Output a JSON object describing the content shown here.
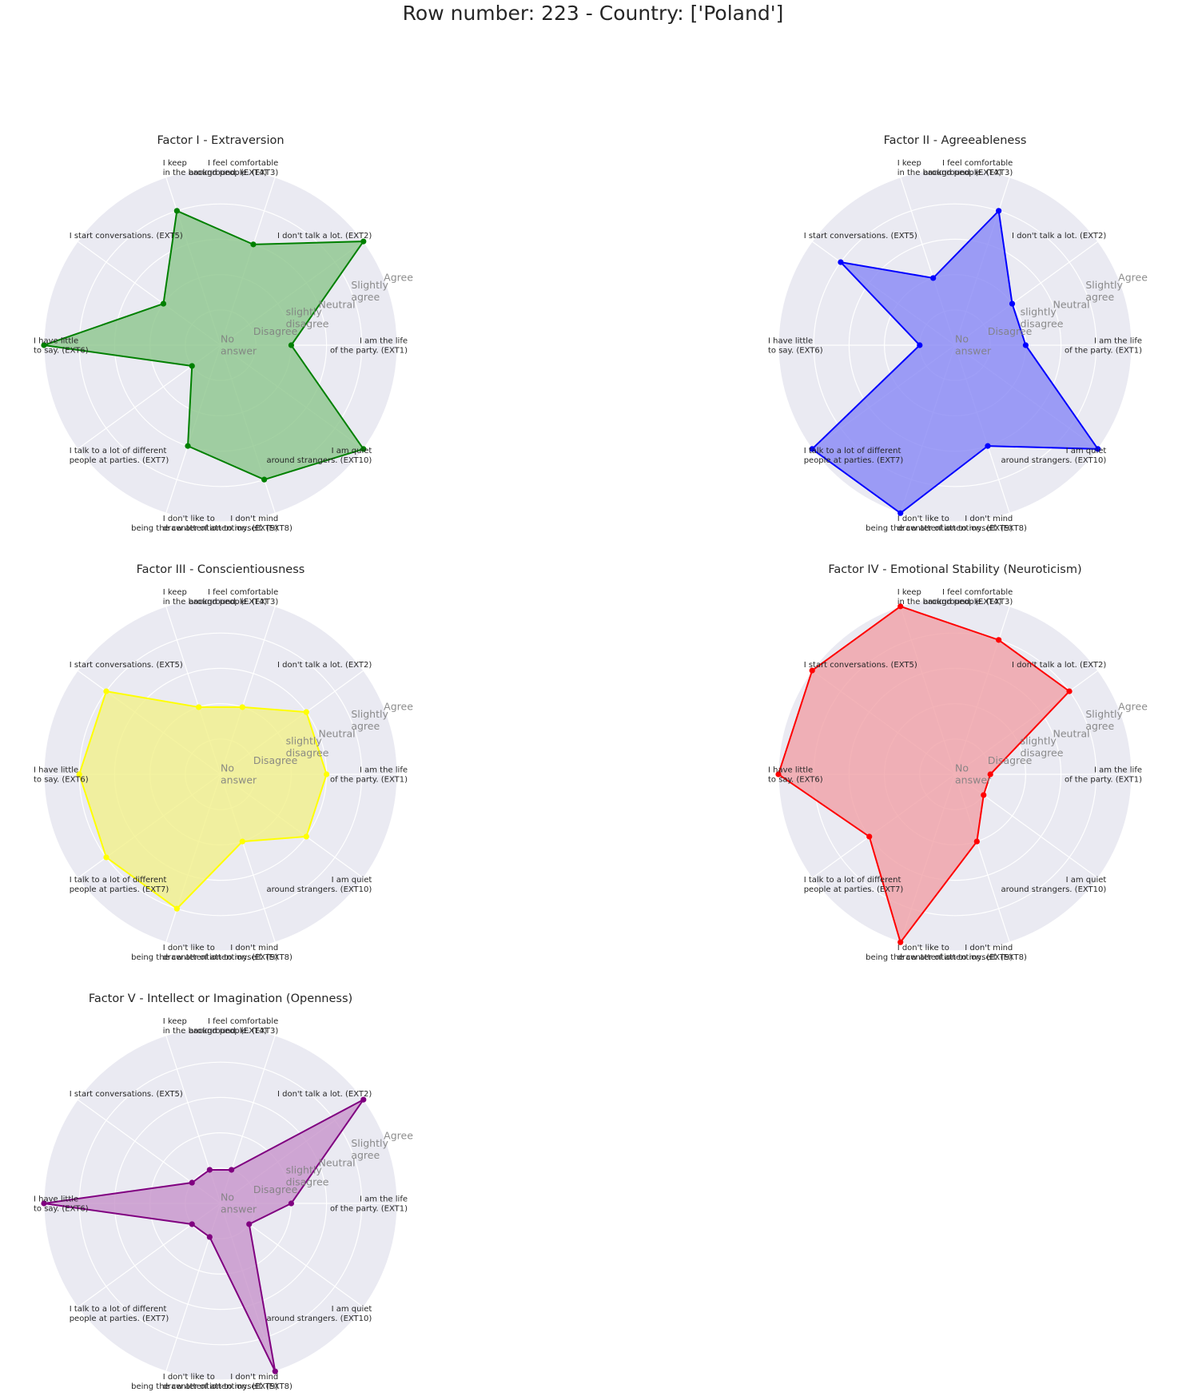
{
  "title": "Row number: 223 - Country: ['Poland']",
  "chart_data": [
    {
      "type": "radar",
      "title": "Factor I - Extraversion",
      "color": "#008000",
      "fill": "#8fc78f",
      "categories": [
        "I am  the life\nof the party. (EXT1)",
        "I don't talk a lot. (EXT2)",
        "I feel comfortable\naround people. (EXT3)",
        "I keep\nin the background. (EXT4)",
        "I start conversations. (EXT5)",
        "I have little\nto say. (EXT6)",
        "I talk to a lot of different\npeople at parties. (EXT7)",
        "I don't like to\ndraw attention to myself. (EXT8)",
        "I don't mind\nbeing the center of attention. (EXT9)",
        "I am quiet\naround strangers. (EXT10)"
      ],
      "values": [
        2,
        5,
        3,
        4,
        2,
        5,
        1,
        3,
        4,
        5
      ],
      "rlabels": [
        "No\nanswer",
        "Disagree",
        "slightly\ndisagree",
        "Neutral",
        "Slightly\nagree",
        "Agree"
      ],
      "rlim": [
        0,
        5
      ]
    },
    {
      "type": "radar",
      "title": "Factor II - Agreeableness",
      "color": "#0000ff",
      "fill": "#8a8af5",
      "categories": [
        "I am  the life\nof the party. (EXT1)",
        "I don't talk a lot. (EXT2)",
        "I feel comfortable\naround people. (EXT3)",
        "I keep\nin the background. (EXT4)",
        "I start conversations. (EXT5)",
        "I have little\nto say. (EXT6)",
        "I talk to a lot of different\npeople at parties. (EXT7)",
        "I don't like to\ndraw attention to myself. (EXT8)",
        "I don't mind\nbeing the center of attention. (EXT9)",
        "I am quiet\naround strangers. (EXT10)"
      ],
      "values": [
        2,
        2,
        4,
        2,
        4,
        1,
        5,
        5,
        3,
        5
      ],
      "rlabels": [
        "No\nanswer",
        "Disagree",
        "slightly\ndisagree",
        "Neutral",
        "Slightly\nagree",
        "Agree"
      ],
      "rlim": [
        0,
        5
      ]
    },
    {
      "type": "radar",
      "title": "Factor III - Conscientiousness",
      "color": "#ffff00",
      "fill": "#f2f08c",
      "categories": [
        "I am  the life\nof the party. (EXT1)",
        "I don't talk a lot. (EXT2)",
        "I feel comfortable\naround people. (EXT3)",
        "I keep\nin the background. (EXT4)",
        "I start conversations. (EXT5)",
        "I have little\nto say. (EXT6)",
        "I talk to a lot of different\npeople at parties. (EXT7)",
        "I don't like to\ndraw attention to myself. (EXT8)",
        "I don't mind\nbeing the center of attention. (EXT9)",
        "I am quiet\naround strangers. (EXT10)"
      ],
      "values": [
        3,
        3,
        2,
        2,
        4,
        4,
        4,
        4,
        2,
        3
      ],
      "rlabels": [
        "No\nanswer",
        "Disagree",
        "slightly\ndisagree",
        "Neutral",
        "Slightly\nagree",
        "Agree"
      ],
      "rlim": [
        0,
        5
      ]
    },
    {
      "type": "radar",
      "title": "Factor IV - Emotional Stability (Neuroticism)",
      "color": "#ff0000",
      "fill": "#f0a2a8",
      "categories": [
        "I am  the life\nof the party. (EXT1)",
        "I don't talk a lot. (EXT2)",
        "I feel comfortable\naround people. (EXT3)",
        "I keep\nin the background. (EXT4)",
        "I start conversations. (EXT5)",
        "I have little\nto say. (EXT6)",
        "I talk to a lot of different\npeople at parties. (EXT7)",
        "I don't like to\ndraw attention to myself. (EXT8)",
        "I don't mind\nbeing the center of attention. (EXT9)",
        "I am quiet\naround strangers. (EXT10)"
      ],
      "values": [
        1,
        4,
        4,
        5,
        5,
        5,
        3,
        5,
        2,
        1
      ],
      "rlabels": [
        "No\nanswer",
        "Disagree",
        "slightly\ndisagree",
        "Neutral",
        "Slightly\nagree",
        "Agree"
      ],
      "rlim": [
        0,
        5
      ]
    },
    {
      "type": "radar",
      "title": "Factor V - Intellect or Imagination (Openness)",
      "color": "#800080",
      "fill": "#c896cc",
      "categories": [
        "I am  the life\nof the party. (EXT1)",
        "I don't talk a lot. (EXT2)",
        "I feel comfortable\naround people. (EXT3)",
        "I keep\nin the background. (EXT4)",
        "I start conversations. (EXT5)",
        "I have little\nto say. (EXT6)",
        "I talk to a lot of different\npeople at parties. (EXT7)",
        "I don't like to\ndraw attention to myself. (EXT8)",
        "I don't mind\nbeing the center of attention. (EXT9)",
        "I am quiet\naround strangers. (EXT10)"
      ],
      "values": [
        2,
        5,
        1,
        1,
        1,
        5,
        1,
        1,
        5,
        1
      ],
      "rlabels": [
        "No\nanswer",
        "Disagree",
        "slightly\ndisagree",
        "Neutral",
        "Slightly\nagree",
        "Agree"
      ],
      "rlim": [
        0,
        5
      ]
    }
  ]
}
